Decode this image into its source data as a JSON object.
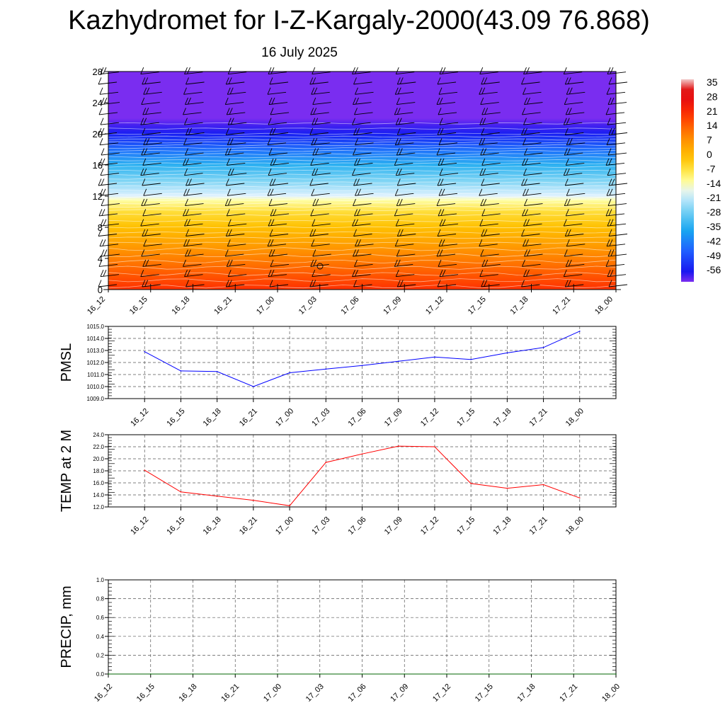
{
  "title": "Kazhydromet for I-Z-Kargaly-2000(43.09 76.868)",
  "subtitle": "16 July 2025",
  "chart_data": [
    {
      "type": "heatmap",
      "x_tick_labels": [
        "16_12",
        "16_15",
        "16_18",
        "16_21",
        "17_00",
        "17_03",
        "17_06",
        "17_09",
        "17_12",
        "17_15",
        "17_18",
        "17_21",
        "18_00"
      ],
      "y_ticks": [
        0,
        4,
        8,
        12,
        16,
        20,
        24,
        28
      ],
      "ylim": [
        0,
        28
      ],
      "colorbar_labels": [
        "35",
        "28",
        "21",
        "14",
        "7",
        "0",
        "-7",
        "-14",
        "-21",
        "-28",
        "-35",
        "-42",
        "-49",
        "-56"
      ],
      "colorbar_range": [
        -60,
        38
      ],
      "temperature_profile": [
        {
          "level": 0,
          "value": 21
        },
        {
          "level": 2,
          "value": 16
        },
        {
          "level": 4,
          "value": 11
        },
        {
          "level": 6,
          "value": 6
        },
        {
          "level": 8,
          "value": 0
        },
        {
          "level": 10,
          "value": -5
        },
        {
          "level": 11.5,
          "value": -12
        },
        {
          "level": 12,
          "value": -17
        },
        {
          "level": 14,
          "value": -25
        },
        {
          "level": 16,
          "value": -33
        },
        {
          "level": 18,
          "value": -43
        },
        {
          "level": 20,
          "value": -54
        },
        {
          "level": 21,
          "value": -57
        },
        {
          "level": 22,
          "value": -60
        },
        {
          "level": 28,
          "value": -60
        }
      ],
      "contour_color": "#ffffff",
      "barb_color": "#000000"
    },
    {
      "type": "line",
      "ylabel": "PMSL",
      "x": [
        "16_12",
        "16_15",
        "16_18",
        "16_21",
        "17_00",
        "17_03",
        "17_06",
        "17_09",
        "17_12",
        "17_15",
        "17_18",
        "17_21",
        "18_00"
      ],
      "values": [
        1012.9,
        1011.3,
        1011.25,
        1010.0,
        1011.15,
        1011.45,
        1011.75,
        1012.1,
        1012.45,
        1012.25,
        1012.8,
        1013.25,
        1014.6
      ],
      "ylim": [
        1009.0,
        1015.0
      ],
      "y_tick_labels": [
        "1009.0",
        "1010.0",
        "1011.0",
        "1012.0",
        "1013.0",
        "1014.0",
        "1015.0"
      ],
      "color": "#0000ff",
      "grid": true
    },
    {
      "type": "line",
      "ylabel": "TEMP at 2 M",
      "x": [
        "16_12",
        "16_15",
        "16_18",
        "16_21",
        "17_00",
        "17_03",
        "17_06",
        "17_09",
        "17_12",
        "17_15",
        "17_18",
        "17_21",
        "18_00"
      ],
      "values": [
        18.1,
        14.5,
        13.8,
        13.1,
        12.2,
        19.4,
        20.8,
        22.1,
        22.0,
        15.9,
        15.1,
        15.7,
        13.5
      ],
      "ylim": [
        12.0,
        24.0
      ],
      "y_tick_labels": [
        "12.0",
        "14.0",
        "16.0",
        "18.0",
        "20.0",
        "22.0",
        "24.0"
      ],
      "color": "#ff0000",
      "grid": true
    },
    {
      "type": "line",
      "ylabel": "PRECIP, mm",
      "x_tick_labels": [
        "16_12",
        "16_15",
        "16_18",
        "16_21",
        "17_00",
        "17_03",
        "17_06",
        "17_09",
        "17_12",
        "17_15",
        "17_18",
        "17_21",
        "18_00"
      ],
      "values": [
        0,
        0,
        0,
        0,
        0,
        0,
        0,
        0,
        0,
        0,
        0,
        0,
        0
      ],
      "ylim": [
        0.0,
        1.0
      ],
      "y_tick_labels": [
        "0.0",
        "0.2",
        "0.4",
        "0.6",
        "0.8",
        "1.0"
      ],
      "color": "#006400",
      "grid": true
    }
  ]
}
